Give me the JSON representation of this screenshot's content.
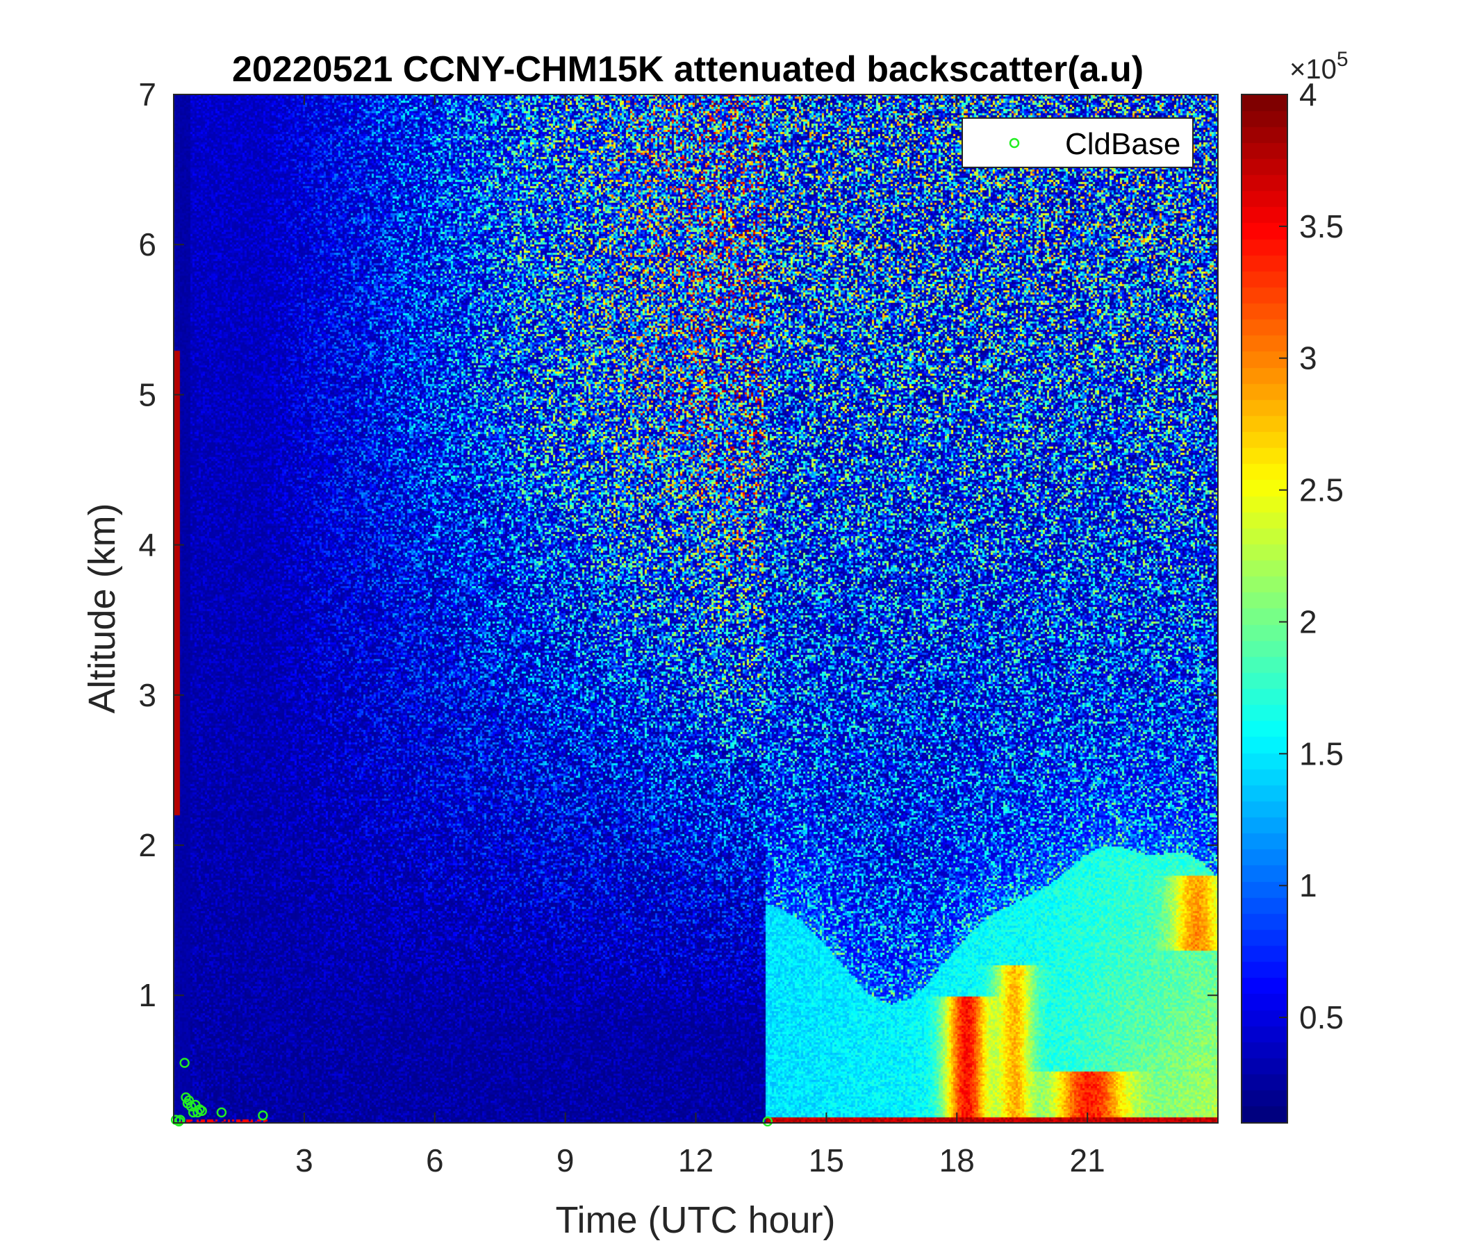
{
  "chart_data": {
    "type": "heatmap",
    "title": "20220521 CCNY-CHM15K attenuated backscatter(a.u)",
    "xlabel": "Time (UTC hour)",
    "ylabel": "Altitude (km)",
    "xlim": [
      0,
      24
    ],
    "ylim": [
      0.15,
      7
    ],
    "xticks": [
      "3",
      "6",
      "9",
      "12",
      "15",
      "18",
      "21"
    ],
    "xtick_values": [
      3,
      6,
      9,
      12,
      15,
      18,
      21
    ],
    "yticks": [
      "1",
      "2",
      "3",
      "4",
      "5",
      "6",
      "7"
    ],
    "ytick_values": [
      1,
      2,
      3,
      4,
      5,
      6,
      7
    ],
    "colormap": "jet",
    "colorbar": {
      "range": [
        10000,
        400000
      ],
      "ticks": [
        "0.5",
        "1",
        "1.5",
        "2",
        "2.5",
        "3",
        "3.5",
        "4"
      ],
      "tick_values": [
        0.5,
        1,
        1.5,
        2,
        2.5,
        3,
        3.5,
        4
      ],
      "multiplier_base": "×10",
      "multiplier_exponent": "5"
    },
    "legend": {
      "position": "top-right",
      "entries": [
        "CldBase"
      ],
      "marker_color": "#22ee22"
    },
    "series": [
      {
        "name": "CldBase",
        "marker": "circle",
        "color": "#22ee22",
        "x": [
          0.05,
          0.12,
          0.15,
          0.25,
          0.28,
          0.32,
          0.35,
          0.4,
          0.45,
          0.5,
          0.55,
          0.6,
          0.65,
          1.1,
          2.05,
          13.65
        ],
        "y": [
          0.17,
          0.16,
          0.17,
          0.55,
          0.32,
          0.28,
          0.3,
          0.26,
          0.22,
          0.27,
          0.22,
          0.24,
          0.23,
          0.22,
          0.2,
          0.16
        ]
      }
    ]
  }
}
